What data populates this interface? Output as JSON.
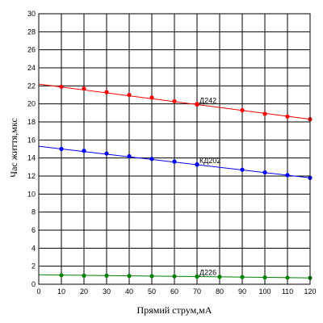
{
  "chart_data": {
    "type": "line",
    "xlabel": "Прямий струм,мА",
    "ylabel": "Час життя,мкс",
    "xlim": [
      0,
      120
    ],
    "ylim": [
      0,
      30
    ],
    "x_ticks": [
      "0",
      "10",
      "20",
      "30",
      "40",
      "50",
      "60",
      "70",
      "80",
      "90",
      "100",
      "110",
      "120"
    ],
    "y_ticks": [
      "0",
      "2",
      "4",
      "6",
      "8",
      "10",
      "12",
      "14",
      "16",
      "18",
      "20",
      "22",
      "24",
      "26",
      "28",
      "30"
    ],
    "grid": true,
    "series": [
      {
        "name": "Д242",
        "color": "#ff0000",
        "label_at_x": 70,
        "x": [
          10,
          20,
          30,
          40,
          50,
          60,
          70,
          90,
          100,
          110,
          120
        ],
        "y": [
          21.9,
          21.7,
          21.3,
          21.0,
          20.7,
          20.3,
          20.0,
          19.3,
          18.9,
          18.6,
          18.3
        ],
        "line": [
          [
            0,
            22.2
          ],
          [
            120,
            18.3
          ]
        ]
      },
      {
        "name": "КД202",
        "color": "#0000ff",
        "label_at_x": 70,
        "x": [
          10,
          20,
          30,
          40,
          50,
          60,
          70,
          90,
          100,
          110,
          120
        ],
        "y": [
          15.0,
          14.8,
          14.5,
          14.2,
          13.9,
          13.6,
          13.3,
          12.7,
          12.4,
          12.1,
          11.8
        ],
        "line": [
          [
            0,
            15.3
          ],
          [
            120,
            11.8
          ]
        ]
      },
      {
        "name": "Д226",
        "color": "#008000",
        "label_at_x": 70,
        "x": [
          10,
          20,
          30,
          40,
          50,
          60,
          70,
          80,
          90,
          100,
          110,
          120
        ],
        "y": [
          1.0,
          0.95,
          0.95,
          0.93,
          0.9,
          0.88,
          0.87,
          0.83,
          0.8,
          0.76,
          0.73,
          0.7
        ],
        "line": [
          [
            0,
            1.05
          ],
          [
            120,
            0.7
          ]
        ]
      }
    ]
  }
}
